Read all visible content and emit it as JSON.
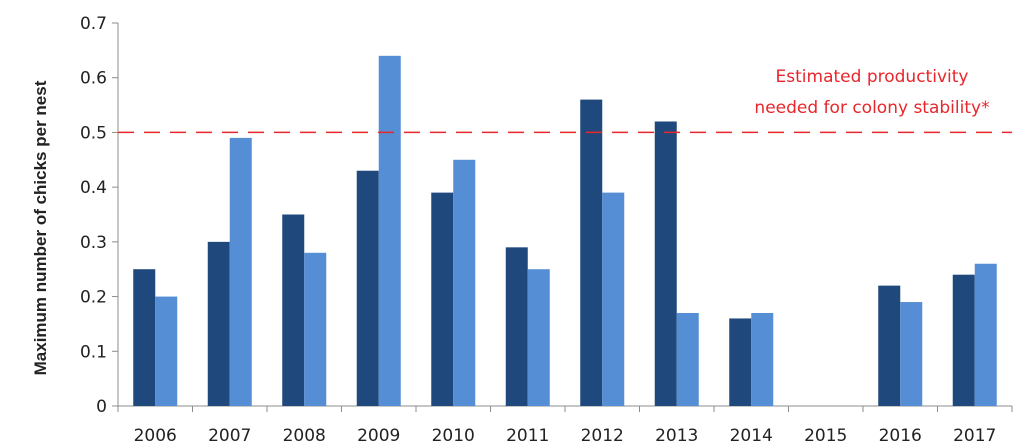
{
  "chart_data": {
    "type": "bar",
    "title": "",
    "xlabel": "",
    "ylabel": "Maximum number of chicks per nest",
    "categories": [
      "2006",
      "2007",
      "2008",
      "2009",
      "2010",
      "2011",
      "2012",
      "2013",
      "2014",
      "2015",
      "2016",
      "2017"
    ],
    "series": [
      {
        "values": [
          0.25,
          0.3,
          0.35,
          0.43,
          0.39,
          0.29,
          0.56,
          0.52,
          0.16,
          null,
          0.22,
          0.24
        ]
      },
      {
        "values": [
          0.2,
          0.49,
          0.28,
          0.64,
          0.45,
          0.25,
          0.39,
          0.17,
          0.17,
          null,
          0.19,
          0.26
        ]
      }
    ],
    "ylim": [
      0,
      0.7
    ],
    "yticks": [
      "0",
      "0.1",
      "0.2",
      "0.3",
      "0.4",
      "0.5",
      "0.6",
      "0.7"
    ],
    "grid": false,
    "reference_line": {
      "value": 0.5,
      "label_line1": "Estimated productivity",
      "label_line2": "needed for colony stability*"
    }
  },
  "colors": {
    "series_dark": "#1f497d",
    "series_light": "#558ed5",
    "reference_line": "#e8262b",
    "axis": "#8c8c8c"
  }
}
